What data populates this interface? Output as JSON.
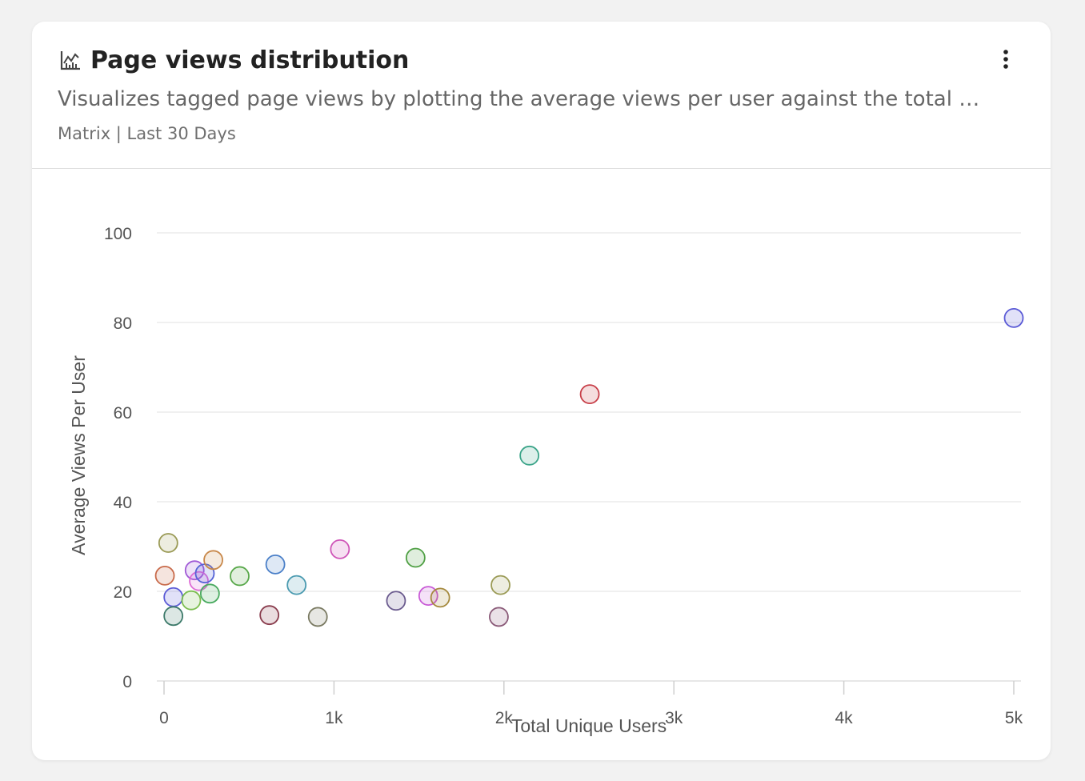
{
  "widget": {
    "title": "Page views distribution",
    "description": "Visualizes tagged page views by plotting the average views per user against the total u...",
    "meta": "Matrix | Last 30 Days",
    "icon": "chart-line-icon",
    "menu_icon": "more-vertical-icon"
  },
  "chart_data": {
    "type": "scatter",
    "title": "",
    "xlabel": "Total Unique Users",
    "ylabel": "Average Views Per User",
    "xlim": [
      0,
      5000
    ],
    "ylim": [
      0,
      100
    ],
    "x_ticks": [
      0,
      1000,
      2000,
      3000,
      4000,
      5000
    ],
    "x_tick_labels": [
      "0",
      "1k",
      "2k",
      "3k",
      "4k",
      "5k"
    ],
    "y_ticks": [
      0,
      20,
      40,
      60,
      80,
      100
    ],
    "y_tick_labels": [
      "0",
      "20",
      "40",
      "60",
      "80",
      "100"
    ],
    "grid": true,
    "legend": "none",
    "points": [
      {
        "x": 25,
        "y": 30.8,
        "color": "#9a9a55"
      },
      {
        "x": 5,
        "y": 23.5,
        "color": "#c86a4a"
      },
      {
        "x": 55,
        "y": 18.7,
        "color": "#5b5bd6"
      },
      {
        "x": 55,
        "y": 14.5,
        "color": "#3d7a6a"
      },
      {
        "x": 160,
        "y": 18.0,
        "color": "#7bbd4f"
      },
      {
        "x": 180,
        "y": 24.7,
        "color": "#a15bd6"
      },
      {
        "x": 205,
        "y": 22.3,
        "color": "#de6bd6"
      },
      {
        "x": 240,
        "y": 24.0,
        "color": "#5563d6"
      },
      {
        "x": 270,
        "y": 19.5,
        "color": "#4aaa60"
      },
      {
        "x": 290,
        "y": 27.0,
        "color": "#c8884a"
      },
      {
        "x": 445,
        "y": 23.4,
        "color": "#58a84a"
      },
      {
        "x": 620,
        "y": 14.7,
        "color": "#8a3d4e"
      },
      {
        "x": 655,
        "y": 26.0,
        "color": "#4a7fc8"
      },
      {
        "x": 780,
        "y": 21.4,
        "color": "#4a9ab0"
      },
      {
        "x": 905,
        "y": 14.3,
        "color": "#7a7a62"
      },
      {
        "x": 1035,
        "y": 29.4,
        "color": "#cf55b8"
      },
      {
        "x": 1365,
        "y": 17.9,
        "color": "#6a5a8e"
      },
      {
        "x": 1480,
        "y": 27.5,
        "color": "#50a045"
      },
      {
        "x": 1555,
        "y": 19.0,
        "color": "#c85ad6"
      },
      {
        "x": 1625,
        "y": 18.6,
        "color": "#a5893d"
      },
      {
        "x": 1970,
        "y": 14.3,
        "color": "#8a5a78"
      },
      {
        "x": 1980,
        "y": 21.4,
        "color": "#9a9a55"
      },
      {
        "x": 2150,
        "y": 50.3,
        "color": "#3da58a"
      },
      {
        "x": 2505,
        "y": 64.0,
        "color": "#c8404a"
      },
      {
        "x": 5000,
        "y": 81.0,
        "color": "#5a5ad6"
      }
    ]
  }
}
